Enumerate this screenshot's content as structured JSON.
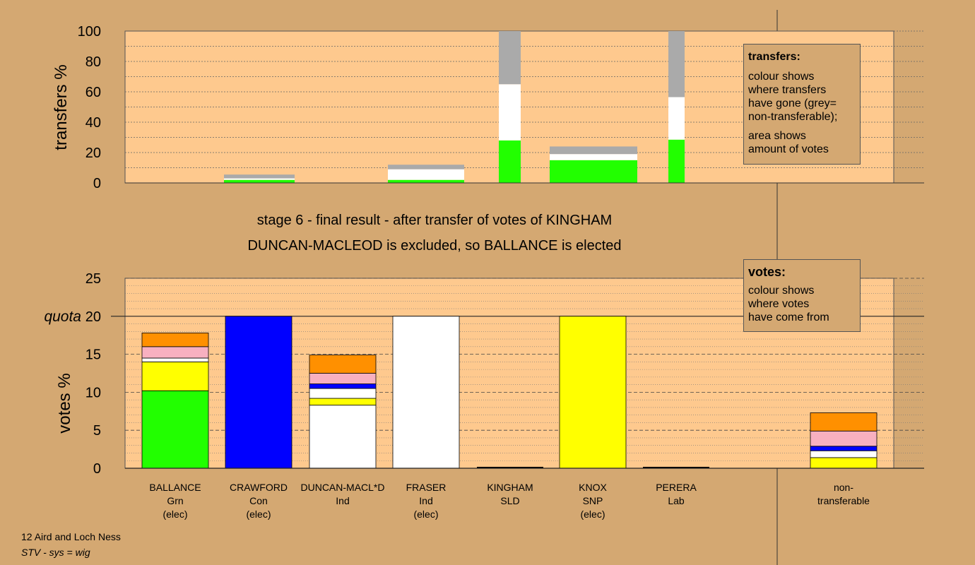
{
  "captions": {
    "stage": "stage 6 - final result - after transfer of votes of KINGHAM",
    "result": "DUNCAN-MACLEOD is excluded, so BALLANCE is elected"
  },
  "legend_transfers": {
    "heading": "transfers:",
    "text1_lines": [
      "colour shows",
      "where transfers",
      "have gone (grey=",
      "non-transferable);"
    ],
    "text2_lines": [
      "area shows",
      "amount of votes"
    ]
  },
  "legend_votes": {
    "heading": "votes:",
    "text_lines": [
      "colour shows",
      "where votes",
      "have come from"
    ]
  },
  "footer": {
    "ward": "12 Aird and Loch Ness",
    "system": "STV - sys = wig"
  },
  "colors": {
    "background": "#d4a872",
    "plot": "#fec98e",
    "grn": "#22ff00",
    "con": "#0000ff",
    "ind": "#ffffff",
    "snp": "#ffff00",
    "sld": "#f8b0c0",
    "lab": "#ff9000",
    "nontransferable": "#aaaaaa"
  },
  "chart_data": [
    {
      "type": "bar",
      "stacked": true,
      "ylabel": "transfers %",
      "ylim": [
        0,
        100
      ],
      "yticks": [
        0,
        20,
        40,
        60,
        80,
        100
      ],
      "grid": true,
      "categories": [
        "BALLANCE",
        "CRAWFORD",
        "DUNCAN-MACL*D",
        "FRASER",
        "KINGHAM",
        "KNOX",
        "PERERA"
      ],
      "bars": [
        {
          "category": "CRAWFORD",
          "segments": [
            {
              "color": "grn",
              "value": 2
            },
            {
              "color": "ind",
              "value": 1
            },
            {
              "color": "nontransferable",
              "value": 2.5
            }
          ]
        },
        {
          "category": "FRASER",
          "segments": [
            {
              "color": "grn",
              "value": 2
            },
            {
              "color": "ind",
              "value": 7
            },
            {
              "color": "nontransferable",
              "value": 3
            }
          ]
        },
        {
          "category": "KINGHAM",
          "segments": [
            {
              "color": "grn",
              "value": 28
            },
            {
              "color": "ind",
              "value": 37
            },
            {
              "color": "nontransferable",
              "value": 35
            }
          ]
        },
        {
          "category": "KNOX",
          "segments": [
            {
              "color": "grn",
              "value": 15
            },
            {
              "color": "ind",
              "value": 4
            },
            {
              "color": "nontransferable",
              "value": 5
            }
          ]
        },
        {
          "category": "PERERA",
          "segments": [
            {
              "color": "grn",
              "value": 28.5
            },
            {
              "color": "ind",
              "value": 28
            },
            {
              "color": "nontransferable",
              "value": 43.5
            }
          ]
        }
      ]
    },
    {
      "type": "bar",
      "stacked": true,
      "ylabel": "votes %",
      "ylim": [
        0,
        25
      ],
      "yticks": [
        0,
        5,
        10,
        15,
        20,
        25
      ],
      "quota": {
        "label": "quota",
        "value": 20
      },
      "grid": true,
      "categories": [
        "BALLANCE",
        "CRAWFORD",
        "DUNCAN-MACL*D",
        "FRASER",
        "KINGHAM",
        "KNOX",
        "PERERA",
        "non-transferable"
      ],
      "category_labels": [
        {
          "name": "BALLANCE",
          "party": "Grn",
          "status": "(elec)"
        },
        {
          "name": "CRAWFORD",
          "party": "Con",
          "status": "(elec)"
        },
        {
          "name": "DUNCAN-MACL*D",
          "party": "Ind",
          "status": ""
        },
        {
          "name": "FRASER",
          "party": "Ind",
          "status": "(elec)"
        },
        {
          "name": "KINGHAM",
          "party": "SLD",
          "status": ""
        },
        {
          "name": "KNOX",
          "party": "SNP",
          "status": "(elec)"
        },
        {
          "name": "PERERA",
          "party": "Lab",
          "status": ""
        },
        {
          "name": "non-",
          "party": "transferable",
          "status": ""
        }
      ],
      "bars": [
        {
          "category": "BALLANCE",
          "segments": [
            {
              "color": "grn",
              "value": 10.2
            },
            {
              "color": "snp",
              "value": 3.8
            },
            {
              "color": "ind",
              "value": 0.5
            },
            {
              "color": "sld",
              "value": 1.5
            },
            {
              "color": "lab",
              "value": 1.8
            }
          ]
        },
        {
          "category": "CRAWFORD",
          "segments": [
            {
              "color": "con",
              "value": 20
            }
          ]
        },
        {
          "category": "DUNCAN-MACL*D",
          "segments": [
            {
              "color": "ind",
              "value": 8.3
            },
            {
              "color": "snp",
              "value": 0.9
            },
            {
              "color": "ind",
              "value": 1.3
            },
            {
              "color": "con",
              "value": 0.6
            },
            {
              "color": "sld",
              "value": 1.4
            },
            {
              "color": "lab",
              "value": 2.4
            }
          ]
        },
        {
          "category": "FRASER",
          "segments": [
            {
              "color": "ind",
              "value": 20
            }
          ]
        },
        {
          "category": "KINGHAM",
          "segments": [
            {
              "color": "sld",
              "value": 0
            }
          ]
        },
        {
          "category": "KNOX",
          "segments": [
            {
              "color": "snp",
              "value": 20
            }
          ]
        },
        {
          "category": "PERERA",
          "segments": [
            {
              "color": "lab",
              "value": 0
            }
          ]
        },
        {
          "category": "non-transferable",
          "segments": [
            {
              "color": "snp",
              "value": 1.4
            },
            {
              "color": "ind",
              "value": 0.9
            },
            {
              "color": "con",
              "value": 0.6
            },
            {
              "color": "sld",
              "value": 2.0
            },
            {
              "color": "lab",
              "value": 2.4
            }
          ]
        }
      ]
    }
  ]
}
